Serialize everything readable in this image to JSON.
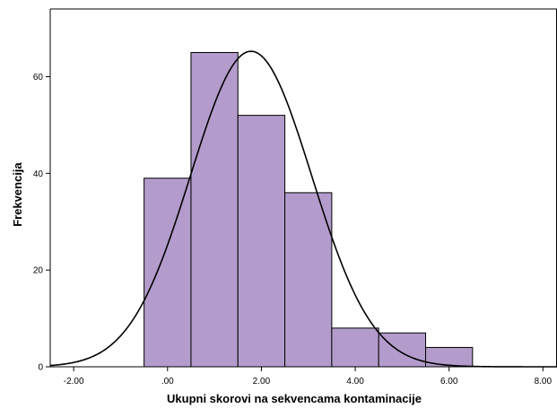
{
  "chart_data": {
    "type": "bar",
    "subtype": "histogram",
    "title": "",
    "xlabel": "Ukupni skorovi na sekvencama kontaminacije",
    "ylabel": "Frekvencija",
    "xlim": [
      -2.5,
      8.3
    ],
    "ylim": [
      0,
      74
    ],
    "x_ticks": [
      -2,
      0,
      2,
      4,
      6,
      8
    ],
    "x_tick_labels": [
      "-2.00",
      ".00",
      "2.00",
      "4.00",
      "6.00",
      "8.00"
    ],
    "y_ticks": [
      0,
      20,
      40,
      60
    ],
    "y_tick_labels": [
      "0",
      "20",
      "40",
      "60"
    ],
    "bins": [
      {
        "start": -0.5,
        "end": 0.5,
        "count": 39
      },
      {
        "start": 0.5,
        "end": 1.5,
        "count": 65
      },
      {
        "start": 1.5,
        "end": 2.5,
        "count": 52
      },
      {
        "start": 2.5,
        "end": 3.5,
        "count": 36
      },
      {
        "start": 3.5,
        "end": 4.5,
        "count": 8
      },
      {
        "start": 4.5,
        "end": 5.5,
        "count": 7
      },
      {
        "start": 5.5,
        "end": 6.5,
        "count": 4
      }
    ],
    "normal_curve": {
      "mean": 1.78,
      "sd": 1.29,
      "n": 211,
      "bin_width": 1
    },
    "grid": false,
    "bar_color": "#b39ccc",
    "bar_edge_color": "#000000",
    "curve_color": "#000000"
  }
}
